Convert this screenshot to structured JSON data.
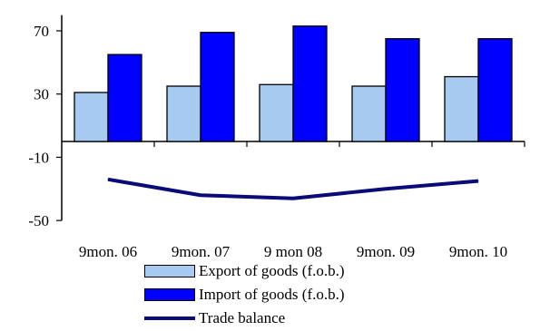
{
  "chart_data": {
    "type": "bar",
    "title": "",
    "xlabel": "",
    "ylabel": "",
    "categories": [
      "9mon. 06",
      "9mon. 07",
      "9 mon 08",
      "9mon. 09",
      "9mon. 10"
    ],
    "ylim": [
      -50,
      80
    ],
    "yticks": [
      70,
      30,
      -10,
      -50
    ],
    "series": [
      {
        "name": "Export of goods (f.o.b.)",
        "kind": "bar",
        "color": "#a6caf0",
        "values": [
          31,
          35,
          36,
          35,
          41
        ]
      },
      {
        "name": "Import of goods (f.o.b.)",
        "kind": "bar",
        "color": "#0000ff",
        "values": [
          55,
          69,
          73,
          65,
          65
        ]
      },
      {
        "name": "Trade balance",
        "kind": "line",
        "color": "#0a0a78",
        "values": [
          -24,
          -34,
          -36,
          -30,
          -25
        ]
      }
    ],
    "legend_position": "bottom",
    "grid": false
  }
}
